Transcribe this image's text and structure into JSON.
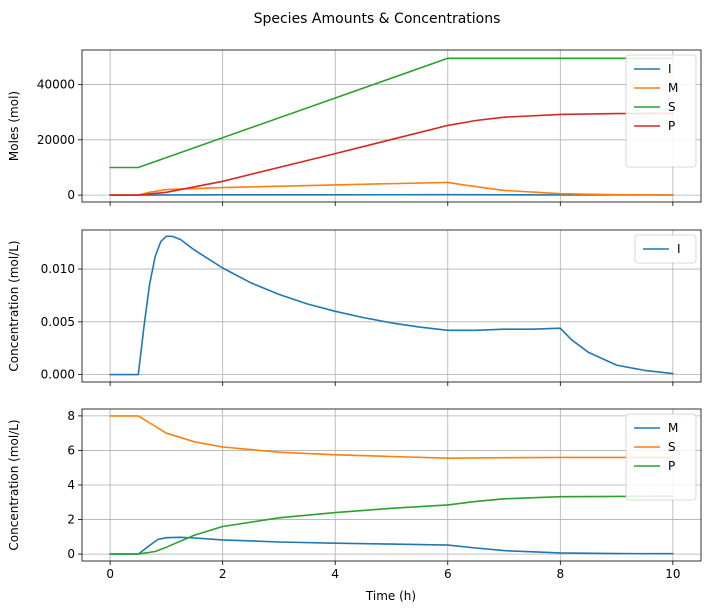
{
  "chart_data": {
    "title": "Species Amounts & Concentrations",
    "xlabel": "Time (h)",
    "xlim": [
      -0.5,
      10.5
    ],
    "x_ticks": [
      0,
      2,
      4,
      6,
      8,
      10
    ],
    "x_tick_labels": [
      "0",
      "2",
      "4",
      "6",
      "8",
      "10"
    ],
    "colors": {
      "I": "#1f77b4",
      "M": "#ff7f0e",
      "S": "#2ca02c",
      "P": "#d62728",
      "green": "#2ca02c",
      "blue": "#1f77b4",
      "orange": "#ff7f0e"
    },
    "panels": [
      {
        "type": "line",
        "ylabel": "Moles (mol)",
        "ylim": [
          -2500,
          52500
        ],
        "y_ticks": [
          0,
          20000,
          40000
        ],
        "y_tick_labels": [
          "0",
          "20000",
          "40000"
        ],
        "grid": true,
        "legend": "top-right",
        "series": [
          {
            "name": "I",
            "color": "#1f77b4",
            "x": [
              0,
              0.5,
              1,
              2,
              4,
              6,
              8,
              10
            ],
            "y": [
              0,
              0,
              80,
              100,
              120,
              150,
              60,
              20
            ]
          },
          {
            "name": "M",
            "color": "#ff7f0e",
            "x": [
              0,
              0.5,
              0.7,
              1,
              2,
              4,
              6,
              6.3,
              7,
              8,
              9,
              10
            ],
            "y": [
              0,
              0,
              1000,
              2000,
              2700,
              3700,
              4600,
              3600,
              1700,
              500,
              150,
              50
            ]
          },
          {
            "name": "S",
            "color": "#2ca02c",
            "x": [
              0,
              0.5,
              6,
              8,
              10
            ],
            "y": [
              10000,
              10000,
              49500,
              49500,
              49500
            ]
          },
          {
            "name": "P",
            "color": "#d62728",
            "x": [
              0,
              0.5,
              1,
              2,
              4,
              6,
              6.5,
              7,
              8,
              9,
              10
            ],
            "y": [
              0,
              0,
              1000,
              5000,
              15000,
              25200,
              27000,
              28200,
              29200,
              29500,
              29600
            ]
          }
        ]
      },
      {
        "type": "line",
        "ylabel": "Concentration (mol/L)",
        "ylim": [
          -0.0007,
          0.0137
        ],
        "y_ticks": [
          0,
          0.005,
          0.01
        ],
        "y_tick_labels": [
          "0.000",
          "0.005",
          "0.010"
        ],
        "grid": true,
        "legend": "top-right",
        "series": [
          {
            "name": "I",
            "color": "#1f77b4",
            "x": [
              0,
              0.5,
              0.6,
              0.7,
              0.8,
              0.9,
              1.0,
              1.1,
              1.25,
              1.5,
              2,
              2.5,
              3,
              3.5,
              4,
              4.5,
              5,
              5.5,
              6,
              6.5,
              7,
              7.5,
              8,
              8.2,
              8.5,
              9,
              9.5,
              10
            ],
            "y": [
              0,
              0,
              0.0045,
              0.0085,
              0.0112,
              0.0126,
              0.0131,
              0.0131,
              0.0128,
              0.0118,
              0.0101,
              0.0087,
              0.0076,
              0.0067,
              0.006,
              0.0054,
              0.0049,
              0.0045,
              0.0042,
              0.0042,
              0.0043,
              0.0043,
              0.0044,
              0.0033,
              0.0021,
              0.0009,
              0.0004,
              0.0001
            ]
          }
        ]
      },
      {
        "type": "line",
        "ylabel": "Concentration (mol/L)",
        "ylim": [
          -0.4,
          8.4
        ],
        "y_ticks": [
          0,
          2,
          4,
          6,
          8
        ],
        "y_tick_labels": [
          "0",
          "2",
          "4",
          "6",
          "8"
        ],
        "grid": true,
        "legend": "top-right",
        "series": [
          {
            "name": "M",
            "color": "#1f77b4",
            "x": [
              0,
              0.5,
              0.7,
              0.85,
              1,
              1.25,
              1.5,
              2,
              3,
              4,
              5,
              6,
              6.5,
              7,
              8,
              9,
              10
            ],
            "y": [
              0,
              0,
              0.5,
              0.85,
              0.95,
              0.97,
              0.93,
              0.82,
              0.7,
              0.63,
              0.58,
              0.52,
              0.35,
              0.2,
              0.07,
              0.03,
              0.02
            ]
          },
          {
            "name": "S",
            "color": "#ff7f0e",
            "x": [
              0,
              0.5,
              0.75,
              1,
              1.5,
              2,
              3,
              4,
              5,
              6,
              7,
              8,
              9,
              10
            ],
            "y": [
              8.0,
              8.0,
              7.5,
              7.0,
              6.5,
              6.2,
              5.9,
              5.75,
              5.65,
              5.55,
              5.58,
              5.6,
              5.6,
              5.6
            ]
          },
          {
            "name": "P",
            "color": "#2ca02c",
            "x": [
              0,
              0.5,
              0.8,
              1,
              1.5,
              2,
              3,
              4,
              5,
              6,
              6.5,
              7,
              8,
              9,
              10
            ],
            "y": [
              0,
              0,
              0.15,
              0.4,
              1.1,
              1.6,
              2.1,
              2.4,
              2.65,
              2.85,
              3.05,
              3.2,
              3.32,
              3.34,
              3.35
            ]
          }
        ]
      }
    ]
  }
}
